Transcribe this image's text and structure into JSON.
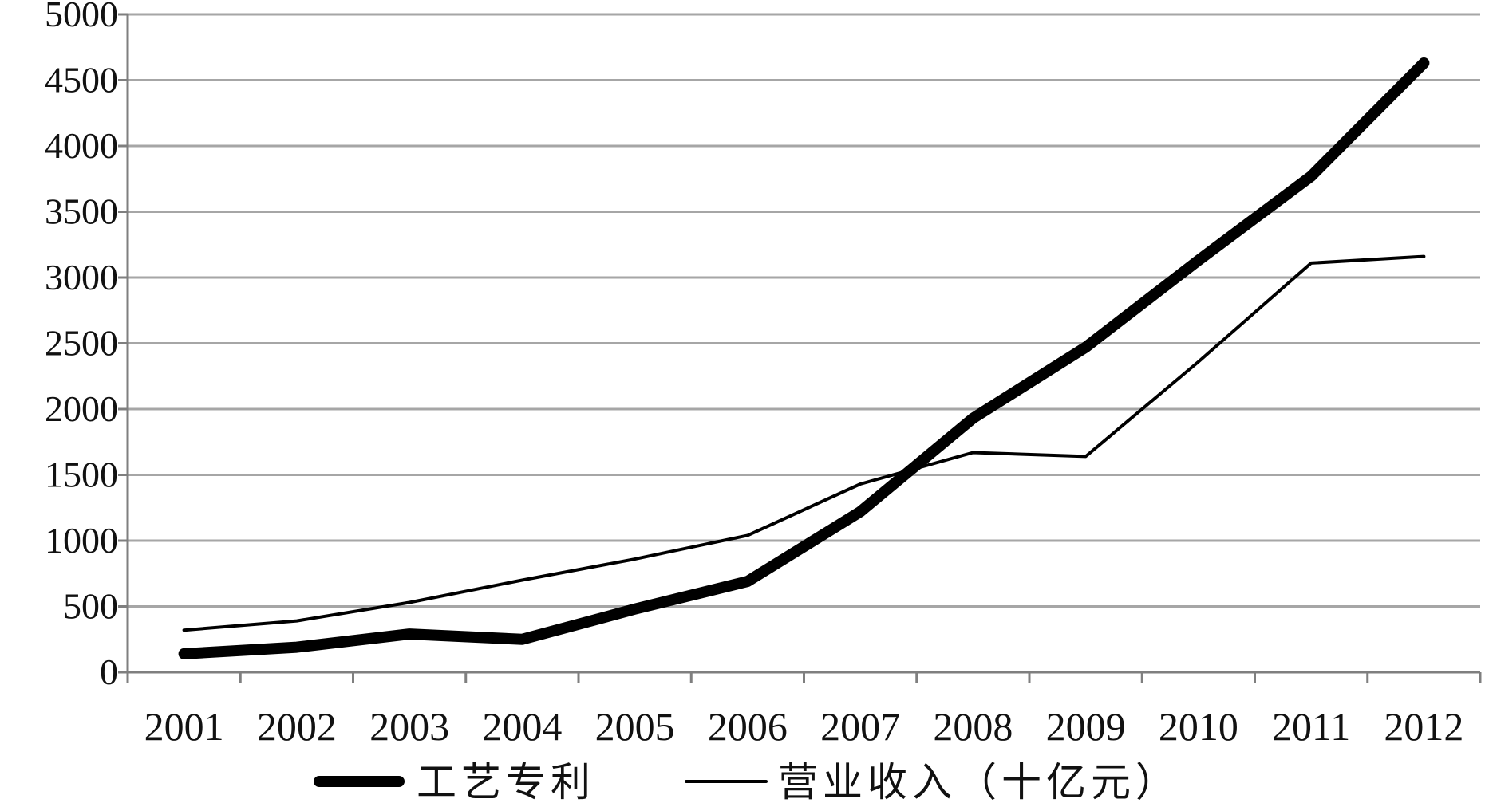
{
  "chart_data": {
    "type": "line",
    "categories": [
      "2001",
      "2002",
      "2003",
      "2004",
      "2005",
      "2006",
      "2007",
      "2008",
      "2009",
      "2010",
      "2011",
      "2012"
    ],
    "series": [
      {
        "name": "工艺专利",
        "values": [
          140,
          190,
          290,
          250,
          480,
          690,
          1220,
          1930,
          2470,
          3130,
          3770,
          4630
        ]
      },
      {
        "name": "营业收入（十亿元）",
        "values": [
          320,
          390,
          530,
          700,
          860,
          1040,
          1430,
          1670,
          1640,
          2360,
          3110,
          3160
        ]
      }
    ],
    "ylim": [
      0,
      5000
    ],
    "yticks": [
      0,
      500,
      1000,
      1500,
      2000,
      2500,
      3000,
      3500,
      4000,
      4500,
      5000
    ],
    "title": "",
    "xlabel": "",
    "ylabel": "",
    "grid": "horizontal",
    "legend": "bottom",
    "colors": {
      "line": "#000000",
      "grid": "#a6a6a6",
      "axis": "#7f7f7f"
    }
  }
}
